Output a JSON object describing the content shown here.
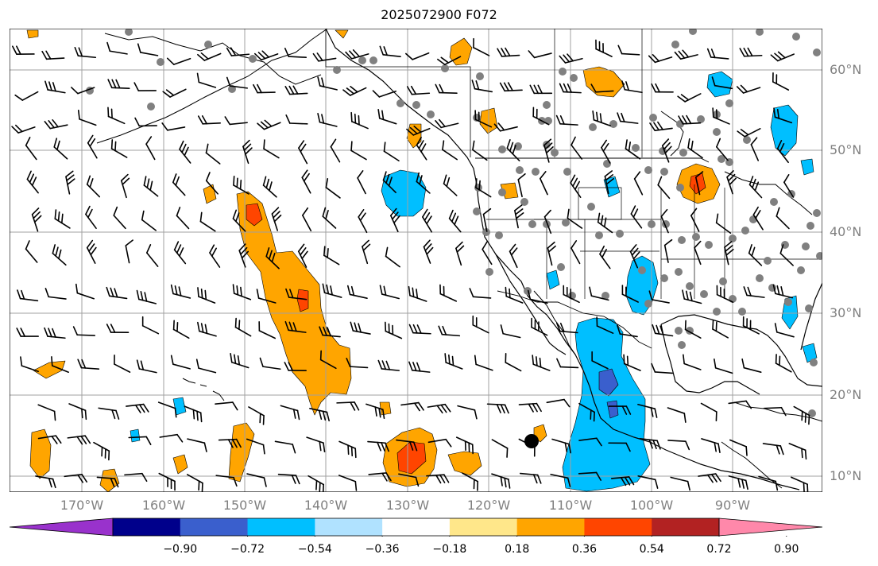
{
  "title": "2025072900 F072",
  "lat_labels": [
    "60°N",
    "50°N",
    "40°N",
    "30°N",
    "20°N",
    "10°N"
  ],
  "lon_labels": [
    "170°W",
    "160°W",
    "150°W",
    "140°W",
    "130°W",
    "120°W",
    "110°W",
    "100°W",
    "90°W"
  ],
  "colorbar": {
    "tick_labels": [
      "−0.90",
      "−0.72",
      "−0.54",
      "−0.36",
      "−0.18",
      "0.18",
      "0.36",
      "0.54",
      "0.72",
      "0.90"
    ],
    "colors": [
      "#9932cc",
      "#00008b",
      "#3a5fcd",
      "#00bfff",
      "#b0e2ff",
      "#ffffff",
      "#ffe78a",
      "#ffa500",
      "#ff4500",
      "#b22222",
      "#ff88aa"
    ]
  },
  "colors": {
    "ocean": "#ffffff",
    "coast": "#000000",
    "grid": "#a0a0a0",
    "station": "#808080",
    "positive_fill": "#ffa500",
    "positive_core": "#ff4500",
    "negative_fill": "#00bfff",
    "negative_core": "#3a5fcd"
  }
}
